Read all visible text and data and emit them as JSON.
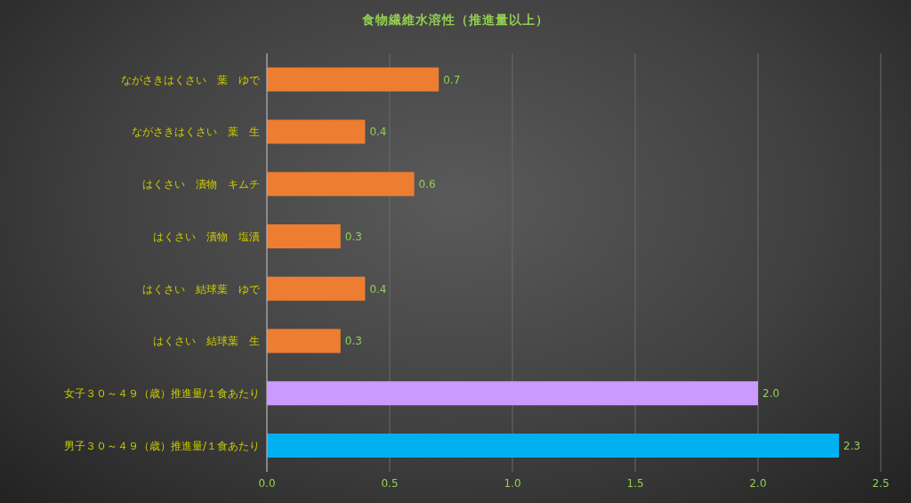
{
  "chart_data": {
    "type": "bar",
    "orientation": "horizontal",
    "title": "食物繊維水溶性（推進量以上）",
    "categories": [
      "ながさきはくさい　葉　ゆで",
      "ながさきはくさい　葉　生",
      "はくさい　漬物　キムチ",
      "はくさい　漬物　塩漬",
      "はくさい　結球葉　ゆで",
      "はくさい　結球葉　生",
      "女子３０～４９（歳）推進量/１食あたり",
      "男子３０～４９（歳）推進量/１食あたり"
    ],
    "values": [
      0.7,
      0.4,
      0.6,
      0.3,
      0.4,
      0.3,
      2.0,
      2.33
    ],
    "value_labels": [
      "0.7",
      "0.4",
      "0.6",
      "0.3",
      "0.4",
      "0.3",
      "2.0",
      "2.3"
    ],
    "colors": [
      "#ed7d31",
      "#ed7d31",
      "#ed7d31",
      "#ed7d31",
      "#ed7d31",
      "#ed7d31",
      "#cc99ff",
      "#00b0f0"
    ],
    "xlim": [
      0,
      2.5
    ],
    "xticks": [
      {
        "value": 0,
        "label": "0.0"
      },
      {
        "value": 0.5,
        "label": "0.5"
      },
      {
        "value": 1,
        "label": "1.0"
      },
      {
        "value": 1.5,
        "label": "1.5"
      },
      {
        "value": 2,
        "label": "2.0"
      },
      {
        "value": 2.5,
        "label": "2.5"
      }
    ],
    "grid": "x"
  }
}
